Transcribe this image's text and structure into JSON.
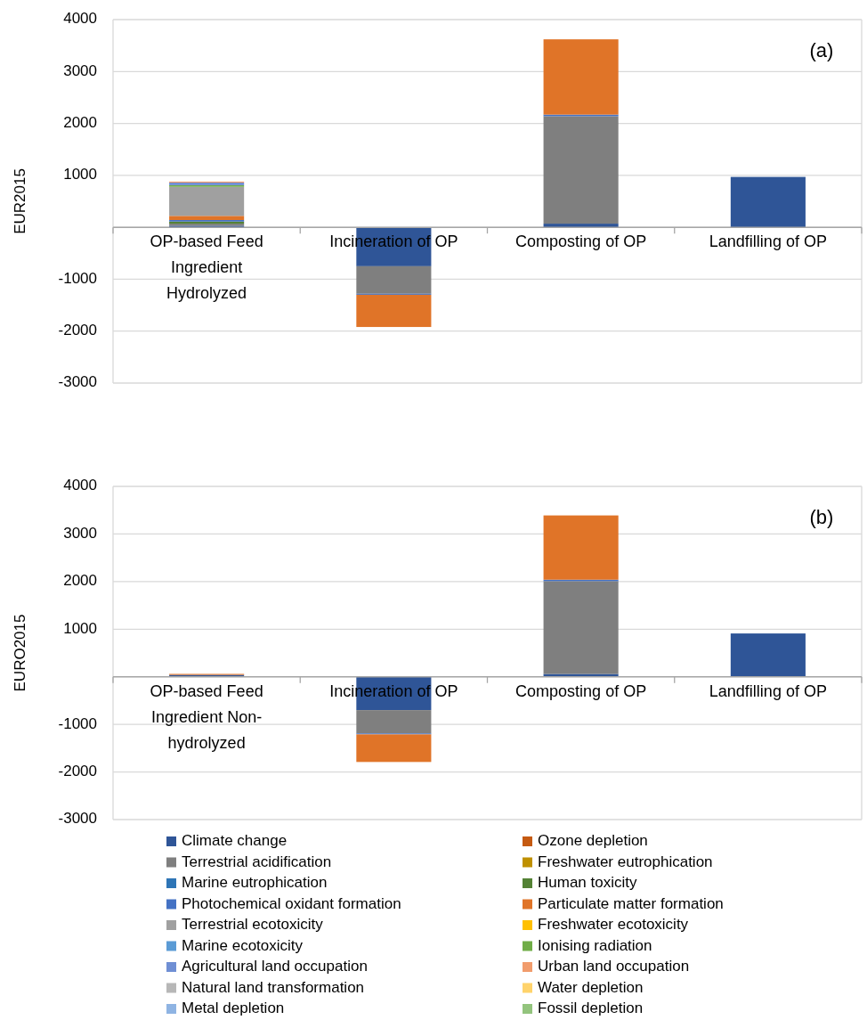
{
  "chart_data": [
    {
      "type": "bar",
      "stacked": true,
      "ylabel": "EUR2015",
      "annotations": [
        "(a)"
      ],
      "grid": "y",
      "ylim": [
        -3000,
        4000
      ],
      "yticks": [
        -3000,
        -2000,
        -1000,
        {
          "value": 0,
          "label": null
        },
        1000,
        2000,
        3000,
        4000
      ],
      "categories": [
        "OP-based Feed Ingredient Hydrolyzed",
        "Incineration of OP",
        "Composting of OP",
        "Landfilling of OP"
      ],
      "series": [
        {
          "color": "#2f5597",
          "values": [
            30,
            -750,
            70,
            970
          ]
        },
        {
          "color": "#7f7f7f",
          "values": [
            40,
            -530,
            2070,
            null
          ]
        },
        {
          "color": "#548235",
          "values": [
            40,
            null,
            null,
            null
          ]
        },
        {
          "color": "#4472c4",
          "values": [
            30,
            -20,
            30,
            null
          ]
        },
        {
          "color": "#e07428",
          "values": [
            80,
            -620,
            1450,
            null
          ]
        },
        {
          "color": "#a0a0a0",
          "values": [
            560,
            null,
            null,
            null
          ]
        },
        {
          "color": "#70ad47",
          "values": [
            30,
            null,
            null,
            null
          ]
        },
        {
          "color": "#6f8fd4",
          "values": [
            50,
            null,
            null,
            null
          ]
        },
        {
          "color": "#f19c6c",
          "values": [
            20,
            null,
            null,
            null
          ]
        }
      ]
    },
    {
      "type": "bar",
      "stacked": true,
      "ylabel": "EURO2015",
      "annotations": [
        "(b)"
      ],
      "grid": "y",
      "legend": "bottom",
      "ylim": [
        -3000,
        4000
      ],
      "yticks": [
        -3000,
        -2000,
        -1000,
        {
          "value": 0,
          "label": null
        },
        1000,
        2000,
        3000,
        4000
      ],
      "categories": [
        "OP-based Feed Ingredient Non-hydrolyzed",
        "Incineration of OP",
        "Composting of OP",
        "Landfilling of OP"
      ],
      "series": [
        {
          "name": "Climate change",
          "color": "#2f5597",
          "values": [
            40,
            -700,
            60,
            910
          ]
        },
        {
          "name": "Ozone depletion",
          "color": "#c55a11",
          "values": [
            null,
            null,
            null,
            null
          ]
        },
        {
          "name": "Terrestrial acidification",
          "color": "#7f7f7f",
          "values": [
            null,
            -490,
            1950,
            null
          ]
        },
        {
          "name": "Freshwater eutrophication",
          "color": "#bf9000",
          "values": [
            null,
            null,
            null,
            null
          ]
        },
        {
          "name": "Marine eutrophication",
          "color": "#2e75b6",
          "values": [
            null,
            null,
            null,
            null
          ]
        },
        {
          "name": "Human toxicity",
          "color": "#548235",
          "values": [
            null,
            null,
            null,
            null
          ]
        },
        {
          "name": "Photochemical oxidant formation",
          "color": "#4472c4",
          "values": [
            null,
            -20,
            30,
            null
          ]
        },
        {
          "name": "Particulate matter formation",
          "color": "#e07428",
          "values": [
            20,
            -580,
            1350,
            null
          ]
        },
        {
          "name": "Terrestrial ecotoxicity",
          "color": "#a0a0a0",
          "values": [
            null,
            null,
            null,
            null
          ]
        },
        {
          "name": "Freshwater ecotoxicity",
          "color": "#ffc000",
          "values": [
            null,
            null,
            null,
            null
          ]
        },
        {
          "name": "Marine ecotoxicity",
          "color": "#5b9bd5",
          "values": [
            null,
            null,
            null,
            null
          ]
        },
        {
          "name": "Ionising radiation",
          "color": "#70ad47",
          "values": [
            null,
            null,
            null,
            null
          ]
        },
        {
          "name": "Agricultural land occupation",
          "color": "#6f8fd4",
          "values": [
            null,
            null,
            null,
            null
          ]
        },
        {
          "name": "Urban land occupation",
          "color": "#f19c6c",
          "values": [
            null,
            null,
            null,
            null
          ]
        },
        {
          "name": "Natural land transformation",
          "color": "#b7b7b7",
          "values": [
            null,
            null,
            null,
            null
          ]
        },
        {
          "name": "Water depletion",
          "color": "#ffd36b",
          "values": [
            null,
            null,
            null,
            null
          ]
        },
        {
          "name": "Metal depletion",
          "color": "#8fb4e3",
          "values": [
            null,
            null,
            null,
            null
          ]
        },
        {
          "name": "Fossil depletion",
          "color": "#93c47d",
          "values": [
            null,
            null,
            null,
            null
          ]
        }
      ]
    }
  ]
}
